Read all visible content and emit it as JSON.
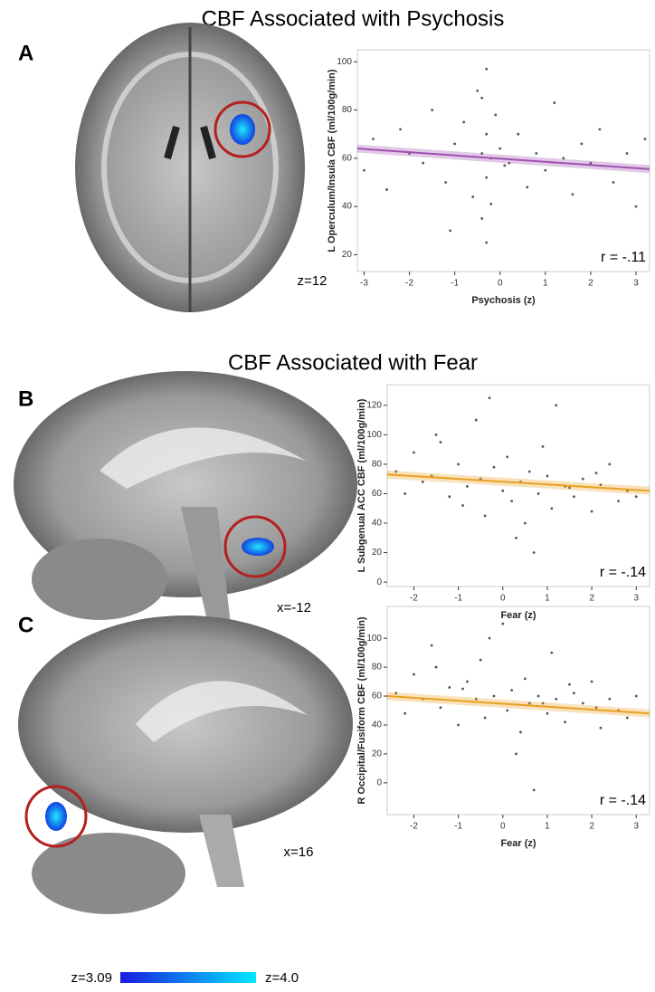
{
  "figure": {
    "titles": [
      "CBF Associated with Psychosis",
      "CBF Associated with Fear"
    ],
    "panels": [
      "A",
      "B",
      "C"
    ],
    "brain_labels": [
      "z=12",
      "x=-12",
      "x=16"
    ],
    "colorbar": {
      "low": "z=3.09",
      "high": "z=4.0"
    }
  },
  "chart_data": [
    {
      "type": "scatter",
      "y_label": "L Operculum/Insula CBF (ml/100g/min)",
      "x_label": "Psychosis (z)",
      "annotation": "r = -.11",
      "color": "#555555",
      "x": [
        -3.0,
        -2.8,
        -2.5,
        -2.2,
        -2.0,
        -1.7,
        -1.5,
        -1.2,
        -1.0,
        -0.8,
        -0.6,
        -0.5,
        -0.4,
        -0.4,
        -0.3,
        -0.3,
        -0.3,
        -0.2,
        -0.2,
        -0.1,
        0.0,
        0.2,
        0.4,
        0.6,
        0.8,
        1.0,
        1.2,
        1.4,
        1.6,
        1.8,
        2.0,
        2.2,
        2.5,
        2.8,
        3.0,
        3.2,
        -0.3,
        -0.4,
        0.1,
        -1.1
      ],
      "values": [
        55,
        68,
        47,
        72,
        62,
        58,
        80,
        50,
        66,
        75,
        44,
        88,
        62,
        35,
        70,
        52,
        97,
        60,
        41,
        78,
        64,
        58,
        70,
        48,
        62,
        55,
        83,
        60,
        45,
        66,
        58,
        72,
        50,
        62,
        40,
        68,
        25,
        85,
        57,
        30
      ],
      "fit": {
        "x": [
          -3.15,
          3.3
        ],
        "values": [
          64,
          55.5
        ],
        "color": "#a050b0"
      },
      "xlim": [
        -3.15,
        3.3
      ],
      "ylim": [
        13,
        105
      ],
      "xticks": [
        -3,
        -2,
        -1,
        0,
        1,
        2,
        3
      ],
      "yticks": [
        20,
        40,
        60,
        80,
        100
      ]
    },
    {
      "type": "scatter",
      "y_label": "L Subgenual ACC CBF (ml/100g/min)",
      "x_label": "Fear (z)",
      "annotation": "r = -.14",
      "color": "#555555",
      "x": [
        -2.4,
        -2.2,
        -2.0,
        -1.8,
        -1.6,
        -1.4,
        -1.2,
        -1.0,
        -0.8,
        -0.6,
        -0.5,
        -0.4,
        -0.2,
        0,
        0.1,
        0.2,
        0.4,
        0.5,
        0.6,
        0.8,
        1.0,
        1.1,
        1.2,
        1.4,
        1.6,
        1.8,
        2.0,
        2.2,
        2.4,
        2.6,
        2.8,
        3.0,
        -1.5,
        -0.9,
        0.3,
        0.9,
        1.5,
        -0.3,
        0.7,
        2.1
      ],
      "values": [
        75,
        60,
        88,
        68,
        72,
        95,
        58,
        80,
        65,
        110,
        70,
        45,
        78,
        62,
        85,
        55,
        68,
        40,
        75,
        60,
        72,
        50,
        120,
        65,
        58,
        70,
        48,
        66,
        80,
        55,
        62,
        58,
        100,
        52,
        30,
        92,
        64,
        125,
        20,
        74
      ],
      "fit": {
        "x": [
          -2.6,
          3.3
        ],
        "values": [
          73,
          62
        ],
        "color": "#e8a020"
      },
      "xlim": [
        -2.6,
        3.3
      ],
      "ylim": [
        -3,
        134
      ],
      "xticks": [
        -2,
        -1,
        0,
        1,
        2,
        3
      ],
      "yticks": [
        0,
        20,
        40,
        60,
        80,
        100,
        120
      ]
    },
    {
      "type": "scatter",
      "y_label": "R Occipital/Fusiform CBF (ml/100g/min)",
      "x_label": "Fear (z)",
      "annotation": "r = -.14",
      "color": "#555555",
      "x": [
        -2.4,
        -2.2,
        -2.0,
        -1.8,
        -1.6,
        -1.4,
        -1.2,
        -1.0,
        -0.8,
        -0.6,
        -0.5,
        -0.4,
        -0.2,
        0,
        0.1,
        0.2,
        0.4,
        0.5,
        0.6,
        0.8,
        1.0,
        1.1,
        1.2,
        1.4,
        1.6,
        1.8,
        2.0,
        2.2,
        2.4,
        2.6,
        2.8,
        3.0,
        -1.5,
        -0.9,
        0.3,
        0.9,
        1.5,
        -0.3,
        0.7,
        2.1
      ],
      "values": [
        62,
        48,
        75,
        58,
        95,
        52,
        66,
        40,
        70,
        58,
        85,
        45,
        60,
        110,
        50,
        64,
        35,
        72,
        55,
        60,
        48,
        90,
        58,
        42,
        62,
        55,
        70,
        38,
        58,
        50,
        45,
        60,
        80,
        65,
        20,
        55,
        68,
        100,
        -5,
        52
      ],
      "fit": {
        "x": [
          -2.6,
          3.3
        ],
        "values": [
          60,
          48
        ],
        "color": "#e8a020"
      },
      "xlim": [
        -2.6,
        3.3
      ],
      "ylim": [
        -22,
        122
      ],
      "xticks": [
        -2,
        -1,
        0,
        1,
        2,
        3
      ],
      "yticks": [
        0,
        20,
        40,
        60,
        80,
        100
      ]
    }
  ]
}
